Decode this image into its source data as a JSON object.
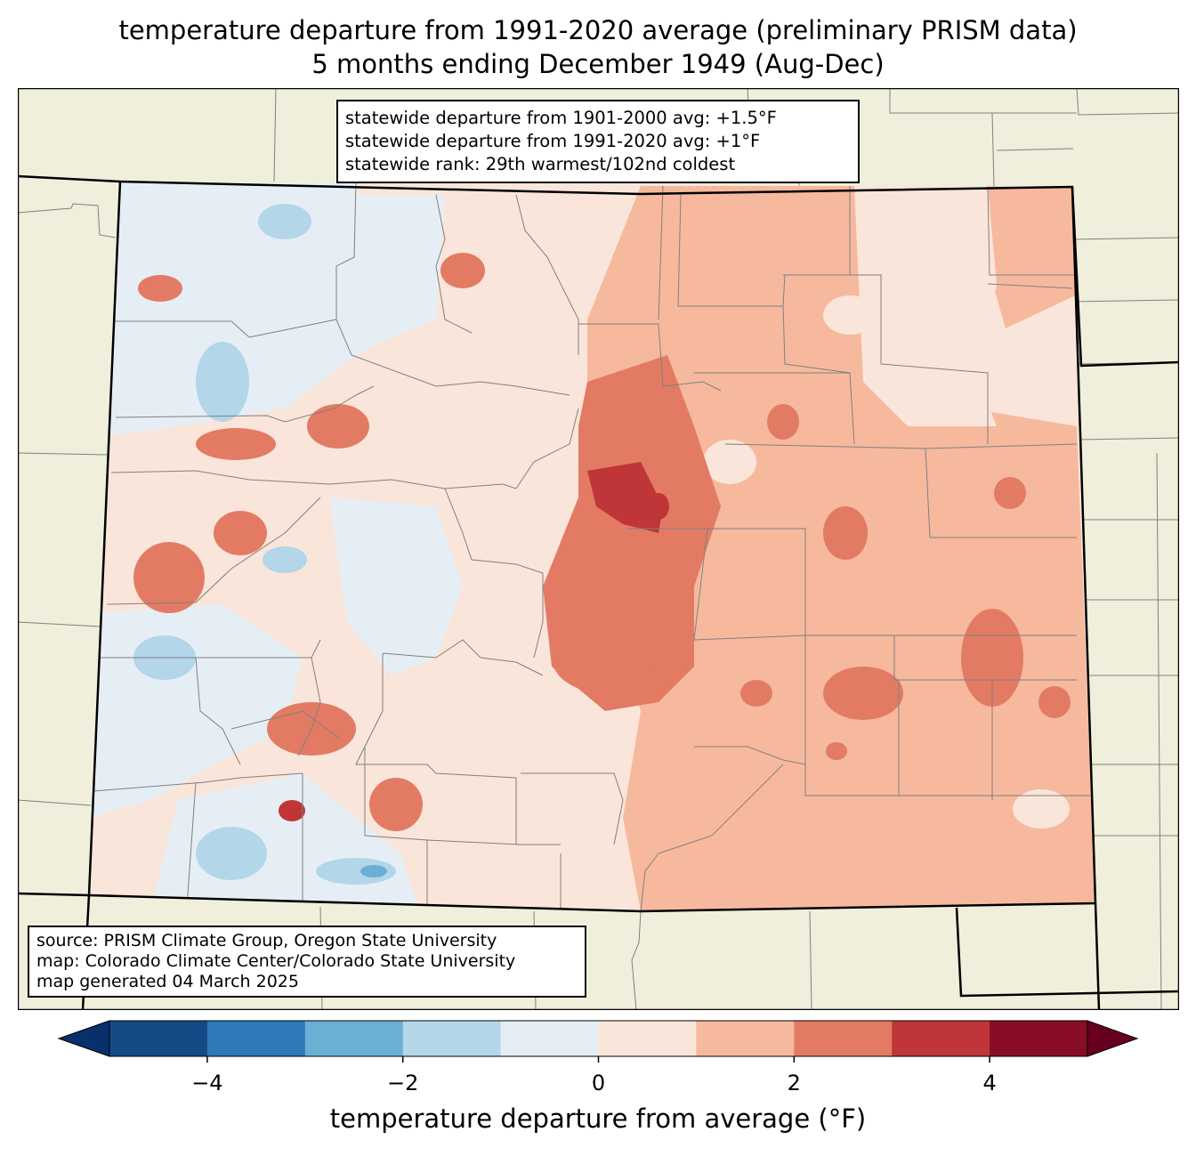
{
  "title": {
    "line1": "temperature departure from 1991-2020 average (preliminary PRISM data)",
    "line2": "5 months ending December 1949 (Aug-Dec)"
  },
  "stats_box": {
    "line1": "statewide departure from 1901-2000 avg: +1.5°F",
    "line2": "statewide departure from 1991-2020 avg: +1°F",
    "line3": "statewide rank: 29th warmest/102nd coldest"
  },
  "source_box": {
    "line1": "source: PRISM Climate Group, Oregon State University",
    "line2": "map: Colorado Climate Center/Colorado State University",
    "line3": "map generated 04 March 2025"
  },
  "colorbar": {
    "label": "temperature departure from average (°F)",
    "ticks": [
      "−4",
      "−2",
      "0",
      "2",
      "4"
    ],
    "tick_values": [
      -4,
      -2,
      0,
      2,
      4
    ],
    "bin_edges": [
      -5,
      -4,
      -3,
      -2,
      -1,
      0,
      1,
      2,
      3,
      4,
      5
    ],
    "colors": [
      "#08306b",
      "#134a86",
      "#2e7ab8",
      "#6aafd4",
      "#b3d6e9",
      "#e6eef5",
      "#fae5da",
      "#f6b99d",
      "#e37b64",
      "#c03537",
      "#890d24",
      "#67001f"
    ]
  },
  "map_colors": {
    "background": "#f0efdc",
    "county_lines": "#808080",
    "state_lines": "#000000"
  }
}
